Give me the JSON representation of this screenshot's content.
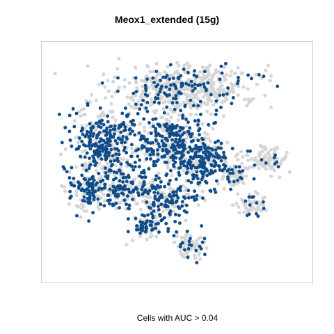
{
  "chart_data": {
    "type": "scatter",
    "title": "Meox1_extended (15g)",
    "caption": "Cells with AUC > 0.04",
    "xlabel": "",
    "ylabel": "",
    "axes_visible": false,
    "grid": false,
    "legend": "none",
    "colors": {
      "above_threshold": "#0f4c8a",
      "below_threshold": "#d6d6d6",
      "frame": "#cccccc"
    },
    "x_range": [
      0,
      100
    ],
    "y_range": [
      0,
      100
    ],
    "series": [
      {
        "name": "Cells with AUC > 0.04",
        "group": "above_threshold",
        "density": 0.55
      },
      {
        "group": "below_threshold",
        "density": 0.45
      }
    ],
    "cluster_regions": [
      {
        "cx": 52,
        "cy": 82,
        "rx": 30,
        "ry": 11,
        "hit_fraction": 0.18
      },
      {
        "cx": 22,
        "cy": 58,
        "rx": 15,
        "ry": 17,
        "hit_fraction": 0.62
      },
      {
        "cx": 48,
        "cy": 58,
        "rx": 15,
        "ry": 16,
        "hit_fraction": 0.58
      },
      {
        "cx": 60,
        "cy": 50,
        "rx": 10,
        "ry": 13,
        "hit_fraction": 0.72
      },
      {
        "cx": 16,
        "cy": 38,
        "rx": 10,
        "ry": 10,
        "hit_fraction": 0.55
      },
      {
        "cx": 30,
        "cy": 38,
        "rx": 12,
        "ry": 9,
        "hit_fraction": 0.45
      },
      {
        "cx": 46,
        "cy": 34,
        "rx": 12,
        "ry": 10,
        "hit_fraction": 0.5
      },
      {
        "cx": 38,
        "cy": 22,
        "rx": 8,
        "ry": 6,
        "hit_fraction": 0.5
      },
      {
        "cx": 55,
        "cy": 14,
        "rx": 7,
        "ry": 7,
        "hit_fraction": 0.2
      },
      {
        "cx": 83,
        "cy": 51,
        "rx": 10,
        "ry": 6,
        "hit_fraction": 0.12
      },
      {
        "cx": 79,
        "cy": 31,
        "rx": 6,
        "ry": 6,
        "hit_fraction": 0.15
      },
      {
        "cx": 72,
        "cy": 43,
        "rx": 6,
        "ry": 6,
        "hit_fraction": 0.3
      }
    ]
  }
}
